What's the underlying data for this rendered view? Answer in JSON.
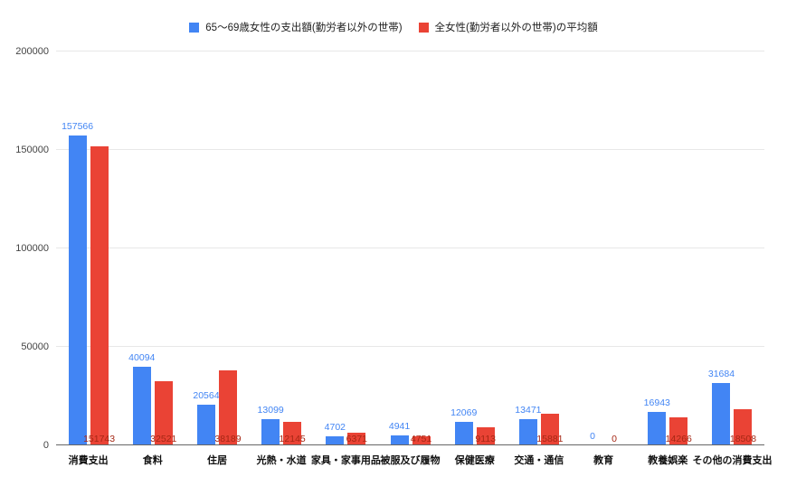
{
  "chart_data": {
    "type": "bar",
    "title": "",
    "xlabel": "",
    "ylabel": "",
    "categories": [
      "消費支出",
      "食料",
      "住居",
      "光熱・水道",
      "家具・家事用品",
      "被服及び履物",
      "保健医療",
      "交通・通信",
      "教育",
      "教養娯楽",
      "その他の消費支出"
    ],
    "series": [
      {
        "name": "65〜69歳女性の支出額(勤労者以外の世帯)",
        "color": "#4285F4",
        "label_color": "#4285F4",
        "values": [
          157566,
          40094,
          20564,
          13099,
          4702,
          4941,
          12069,
          13471,
          0,
          16943,
          31684
        ]
      },
      {
        "name": "全女性(勤労者以外の世帯)の平均額",
        "color": "#EA4335",
        "label_color": "#A52714",
        "values": [
          151743,
          32521,
          38189,
          12145,
          6371,
          4751,
          9113,
          15881,
          0,
          14266,
          18508
        ]
      }
    ],
    "ylim": [
      0,
      200000
    ],
    "yticks": [
      0,
      50000,
      100000,
      150000,
      200000
    ],
    "grid": true,
    "legend_position": "top"
  }
}
